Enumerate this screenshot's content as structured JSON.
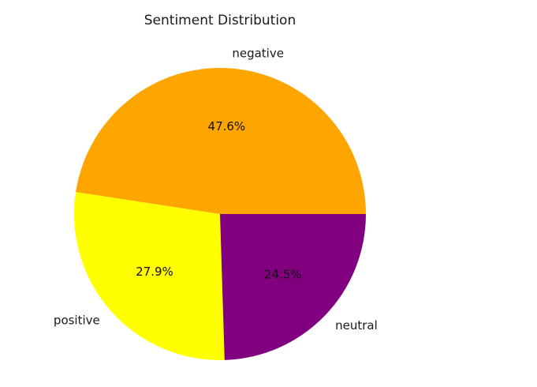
{
  "chart_data": {
    "type": "pie",
    "title": "Sentiment Distribution",
    "start_angle_deg": 0,
    "direction": "counterclockwise",
    "slices": [
      {
        "label": "negative",
        "value": 47.6,
        "pct_label": "47.6%",
        "color": "#FFA500"
      },
      {
        "label": "positive",
        "value": 27.9,
        "pct_label": "27.9%",
        "color": "#FFFF00"
      },
      {
        "label": "neutral",
        "value": 24.5,
        "pct_label": "24.5%",
        "color": "#800080"
      }
    ]
  }
}
